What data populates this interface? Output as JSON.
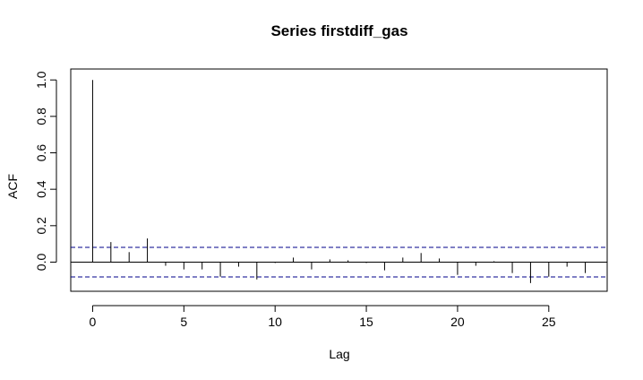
{
  "chart_data": {
    "type": "bar",
    "title": "Series  firstdiff_gas",
    "xlabel": "Lag",
    "ylabel": "ACF",
    "xlim": [
      -1.2,
      28.2
    ],
    "ylim": [
      -0.16,
      1.06
    ],
    "x_ticks": [
      0,
      5,
      10,
      15,
      20,
      25
    ],
    "y_ticks": [
      0.0,
      0.2,
      0.4,
      0.6,
      0.8,
      1.0
    ],
    "y_tick_labels": [
      "0.0",
      "0.2",
      "0.4",
      "0.6",
      "0.8",
      "1.0"
    ],
    "confidence_limit": 0.081,
    "lags": [
      0,
      1,
      2,
      3,
      4,
      5,
      6,
      7,
      8,
      9,
      10,
      11,
      12,
      13,
      14,
      15,
      16,
      17,
      18,
      19,
      20,
      21,
      22,
      23,
      24,
      25,
      26,
      27
    ],
    "acf": [
      1.0,
      0.11,
      0.055,
      0.13,
      -0.02,
      -0.04,
      -0.04,
      -0.08,
      -0.025,
      -0.095,
      -0.005,
      0.025,
      -0.04,
      0.015,
      0.01,
      -0.005,
      -0.045,
      0.025,
      0.05,
      0.02,
      -0.07,
      -0.02,
      0.005,
      -0.06,
      -0.115,
      -0.08,
      -0.025,
      -0.06
    ],
    "colors": {
      "lines": "#000000",
      "confidence": "#00008b"
    }
  }
}
